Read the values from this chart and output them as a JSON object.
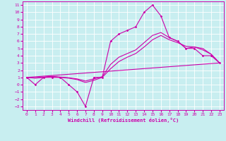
{
  "xlabel": "Windchill (Refroidissement éolien,°C)",
  "xlim": [
    -0.5,
    23.5
  ],
  "ylim": [
    -3.5,
    11.5
  ],
  "xticks": [
    0,
    1,
    2,
    3,
    4,
    5,
    6,
    7,
    8,
    9,
    10,
    11,
    12,
    13,
    14,
    15,
    16,
    17,
    18,
    19,
    20,
    21,
    22,
    23
  ],
  "yticks": [
    -3,
    -2,
    -1,
    0,
    1,
    2,
    3,
    4,
    5,
    6,
    7,
    8,
    9,
    10,
    11
  ],
  "background_color": "#c8eef0",
  "grid_color": "#ffffff",
  "line_color": "#cc00aa",
  "lines": [
    {
      "x": [
        0,
        1,
        2,
        3,
        4,
        5,
        6,
        7,
        8,
        9,
        10,
        11,
        12,
        13,
        14,
        15,
        16,
        17,
        18,
        19,
        20,
        21,
        22,
        23
      ],
      "y": [
        1,
        0,
        1,
        1,
        1,
        0,
        -1,
        -3,
        1,
        1,
        6,
        7,
        7.5,
        8,
        10,
        11,
        9.5,
        6.5,
        6,
        5,
        5,
        4,
        4,
        3
      ],
      "marker": true
    },
    {
      "x": [
        0,
        1,
        2,
        3,
        4,
        5,
        6,
        7,
        8,
        9,
        10,
        11,
        12,
        13,
        14,
        15,
        16,
        17,
        18,
        19,
        20,
        21,
        22,
        23
      ],
      "y": [
        1,
        0.9,
        1.0,
        1.1,
        1.0,
        0.9,
        0.7,
        0.3,
        0.6,
        1.0,
        2.2,
        3.2,
        3.8,
        4.3,
        5.2,
        6.2,
        6.8,
        6.2,
        5.8,
        5.3,
        5.2,
        4.8,
        4.2,
        3.0
      ],
      "marker": false
    },
    {
      "x": [
        0,
        1,
        2,
        3,
        4,
        5,
        6,
        7,
        8,
        9,
        10,
        11,
        12,
        13,
        14,
        15,
        16,
        17,
        18,
        19,
        20,
        21,
        22,
        23
      ],
      "y": [
        1,
        0.95,
        1.05,
        1.15,
        1.05,
        0.95,
        0.8,
        0.5,
        0.8,
        1.1,
        2.8,
        3.8,
        4.3,
        4.8,
        5.8,
        6.8,
        7.2,
        6.5,
        6.0,
        5.0,
        5.2,
        5.0,
        4.2,
        3.0
      ],
      "marker": false
    },
    {
      "x": [
        0,
        23
      ],
      "y": [
        1,
        3
      ],
      "marker": false
    }
  ]
}
